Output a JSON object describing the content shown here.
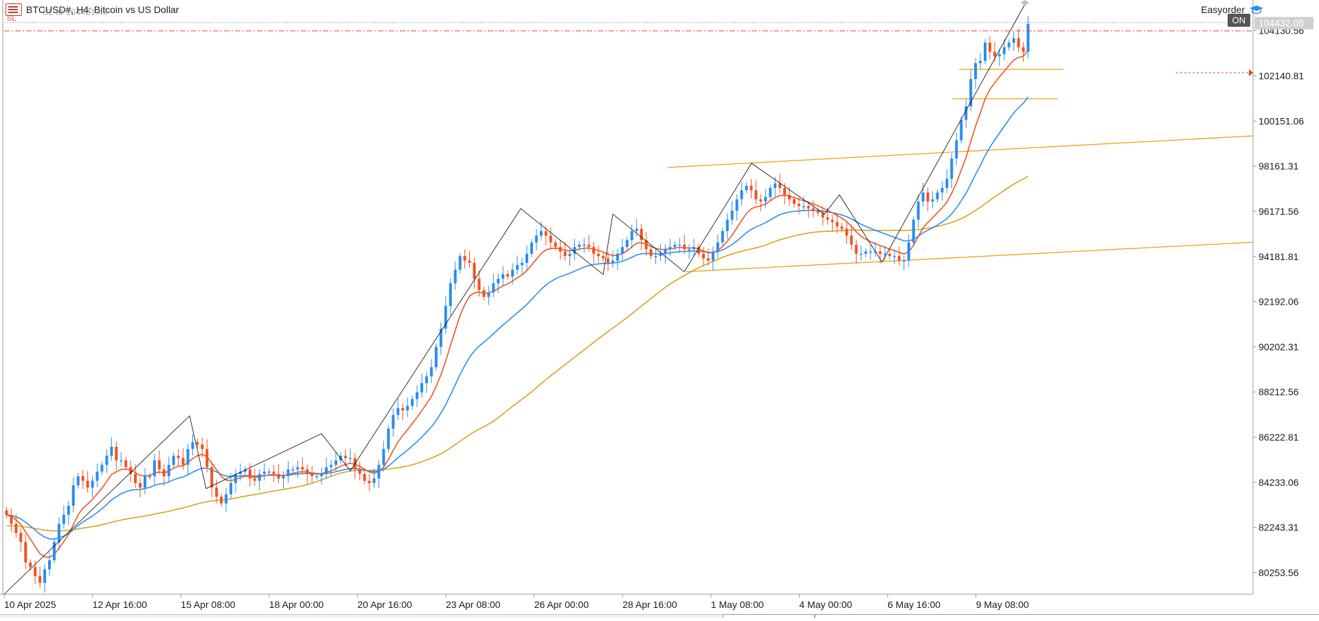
{
  "header": {
    "symbol_title": "BTCUSD#, H4:  Bitcoin vs US Dollar",
    "overlay_text": "SL at 104421.45",
    "sl_marker": "SL"
  },
  "easyorder": {
    "label": "Easyorder",
    "status": "ON"
  },
  "price_axis": {
    "labels": [
      "104130.56",
      "102140.81",
      "100151.06",
      "98161.31",
      "96171.56",
      "94181.81",
      "92192.06",
      "90202.31",
      "88212.56",
      "86222.81",
      "84233.06",
      "82243.31",
      "80253.56"
    ],
    "current_price": "104432.05"
  },
  "time_axis": {
    "labels": [
      "10 Apr 2025",
      "12 Apr 16:00",
      "15 Apr 08:00",
      "18 Apr 00:00",
      "20 Apr 16:00",
      "23 Apr 08:00",
      "26 Apr 00:00",
      "28 Apr 16:00",
      "1 May 08:00",
      "4 May 00:00",
      "6 May 16:00",
      "9 May 08:00"
    ]
  },
  "colors": {
    "bull": "#2a8cf0",
    "bear": "#f4511e",
    "ma_fast": "#f4511e",
    "ma_mid": "#2a8cf0",
    "ma_slow": "#d9a21b",
    "trendlines": "#e5a11a",
    "zigzag": "#000000",
    "sl_line": "#e0462a",
    "current_badge": "#cfcfcf"
  },
  "chart_data": {
    "type": "candlestick",
    "title": "BTCUSD#, H4: Bitcoin vs US Dollar",
    "ylim": [
      79300,
      105300
    ],
    "current_price": 104432.05,
    "stop_loss": 104421.45,
    "closes": [
      82800,
      82400,
      82000,
      81600,
      80700,
      80500,
      80100,
      79800,
      80400,
      80800,
      81600,
      82400,
      82800,
      83200,
      84100,
      84500,
      84300,
      84000,
      84300,
      84700,
      85000,
      85400,
      85800,
      85200,
      85200,
      84900,
      84600,
      84200,
      84000,
      84500,
      84500,
      85200,
      84800,
      84500,
      85000,
      85400,
      85300,
      85000,
      85700,
      86000,
      85900,
      85700,
      84900,
      84000,
      83600,
      83300,
      83700,
      84200,
      84600,
      84700,
      84800,
      84400,
      84300,
      84600,
      84700,
      84700,
      84600,
      84400,
      84500,
      84800,
      84800,
      84900,
      84800,
      84600,
      84500,
      84500,
      84600,
      84900,
      85000,
      85200,
      85400,
      85300,
      85300,
      84800,
      84600,
      84300,
      84200,
      84400,
      85000,
      85700,
      86600,
      87200,
      87500,
      87400,
      87600,
      87900,
      88200,
      88600,
      88900,
      89300,
      90200,
      91000,
      92000,
      93000,
      93600,
      94200,
      94000,
      93900,
      93200,
      92700,
      92400,
      92600,
      93000,
      93200,
      93400,
      93300,
      93600,
      93800,
      93900,
      94300,
      94800,
      95100,
      95300,
      95100,
      94800,
      94600,
      94400,
      94200,
      94300,
      94600,
      94700,
      94700,
      94600,
      94300,
      94200,
      94100,
      93900,
      94000,
      94300,
      94600,
      94900,
      95300,
      95400,
      94900,
      94500,
      94200,
      94200,
      94300,
      94500,
      94600,
      94700,
      94700,
      94500,
      94500,
      94600,
      94300,
      94100,
      94000,
      94400,
      94800,
      95300,
      95800,
      96200,
      96700,
      97100,
      97300,
      97100,
      96700,
      96600,
      96800,
      97200,
      97400,
      97200,
      96900,
      96700,
      96500,
      96400,
      96400,
      96300,
      96200,
      96100,
      95900,
      95800,
      95700,
      95500,
      95400,
      95100,
      94700,
      94300,
      94300,
      94400,
      94400,
      94400,
      94300,
      94300,
      94200,
      94200,
      94000,
      94000,
      94800,
      95800,
      96600,
      97000,
      96600,
      96700,
      97000,
      97200,
      97600,
      98500,
      99300,
      100200,
      100800,
      102000,
      102700,
      102800,
      103600,
      103200,
      103000,
      103100,
      103400,
      103600,
      103800,
      103400,
      103200,
      104432
    ]
  }
}
